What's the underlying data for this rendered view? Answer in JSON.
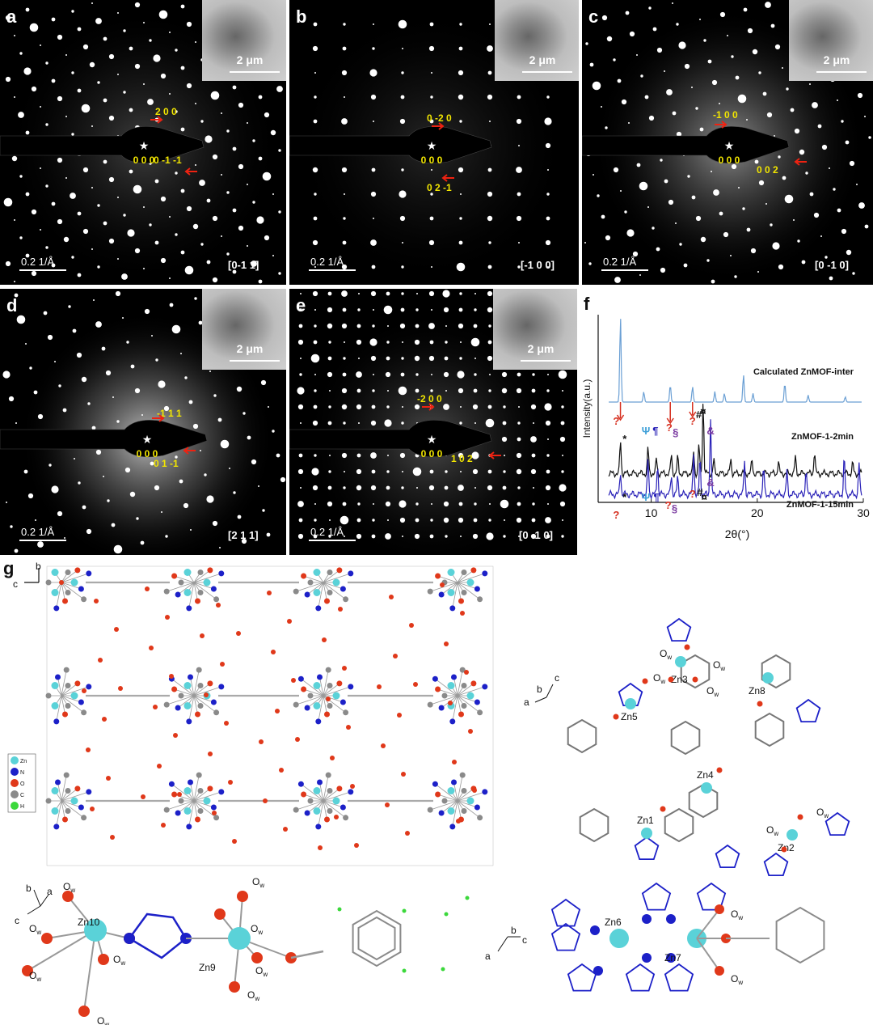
{
  "panels": [
    {
      "label": "a",
      "zone": "[0-1 1]",
      "idx_top": "2 0 0",
      "idx_origin": "0 0 0",
      "idx_bottom": "0 -1 -1",
      "scale": "0.2 1/Å",
      "inset_scale": "2 μm"
    },
    {
      "label": "b",
      "zone": "[-1 0 0]",
      "idx_top": "0 -2 0",
      "idx_origin": "0 0 0",
      "idx_bottom": "0 2 -1",
      "scale": "0.2 1/Å",
      "inset_scale": "2 μm"
    },
    {
      "label": "c",
      "zone": "[0 -1 0]",
      "idx_top": "-1 0 0",
      "idx_origin": "0 0 0",
      "idx_bottom": "0 0 2",
      "scale": "0.2 1/Å",
      "inset_scale": "2 μm"
    },
    {
      "label": "d",
      "zone": "[2 1 1]",
      "idx_top": "-1 1 1",
      "idx_origin": "0 0 0",
      "idx_bottom": "0 1 -1",
      "scale": "0.2 1/Å",
      "inset_scale": "2 μm"
    },
    {
      "label": "e",
      "zone": "[0 -1 0]",
      "idx_top": "-2 0 0",
      "idx_origin": "0 0 0",
      "idx_bottom": "1 0 2",
      "scale": "0.2 1/Å",
      "inset_scale": "2 μm"
    }
  ],
  "panel_f": {
    "label": "f",
    "ylabel": "Intensity(a.u.)",
    "xlabel": "2θ(°)",
    "series": [
      {
        "name": "Calculated ZnMOF-inter",
        "color": "#6a9fd4"
      },
      {
        "name": "ZnMOF-1-2min",
        "color": "#111111"
      },
      {
        "name": "ZnMOF-1-15min",
        "color": "#2a22b8"
      }
    ],
    "markers": {
      "q": "?",
      "star": "*",
      "psi": "Ψ",
      "para": "¶",
      "sect": "§",
      "hash": "#",
      "amp": "&",
      "curr": "¤"
    }
  },
  "chart_data": {
    "type": "line",
    "xlabel": "2θ(°)",
    "ylabel": "Intensity(a.u.)",
    "xlim": [
      5,
      30
    ],
    "xticks": [
      10,
      20,
      30
    ],
    "series": [
      {
        "name": "Calculated ZnMOF-inter",
        "peaks": [
          [
            7.1,
            100
          ],
          [
            9.3,
            12
          ],
          [
            11.8,
            20
          ],
          [
            13.9,
            18
          ],
          [
            16.0,
            12
          ],
          [
            16.9,
            10
          ],
          [
            18.7,
            32
          ],
          [
            19.6,
            10
          ],
          [
            22.6,
            22
          ],
          [
            24.8,
            8
          ],
          [
            28.3,
            6
          ]
        ]
      },
      {
        "name": "ZnMOF-1-2min",
        "peaks": [
          [
            7.1,
            45
          ],
          [
            9.7,
            35
          ],
          [
            10.5,
            20
          ],
          [
            11.9,
            25
          ],
          [
            12.5,
            22
          ],
          [
            14.0,
            30
          ],
          [
            14.5,
            40
          ],
          [
            14.9,
            100
          ],
          [
            15.9,
            18
          ],
          [
            17.5,
            20
          ],
          [
            19.5,
            18
          ],
          [
            22.0,
            16
          ],
          [
            23.6,
            22
          ],
          [
            25.4,
            30
          ],
          [
            29.0,
            14
          ]
        ]
      },
      {
        "name": "ZnMOF-1-15min",
        "peaks": [
          [
            7.1,
            30
          ],
          [
            9.7,
            45
          ],
          [
            10.6,
            40
          ],
          [
            11.9,
            25
          ],
          [
            12.5,
            22
          ],
          [
            14.0,
            55
          ],
          [
            14.6,
            48
          ],
          [
            15.6,
            100
          ],
          [
            18.8,
            45
          ],
          [
            20.6,
            35
          ],
          [
            22.8,
            30
          ],
          [
            24.6,
            34
          ],
          [
            28.2,
            48
          ],
          [
            29.6,
            40
          ]
        ]
      }
    ]
  },
  "panel_g": {
    "label": "g",
    "legend": [
      "Zn",
      "N",
      "O",
      "C",
      "H"
    ],
    "axes": {
      "b": "b",
      "c": "c",
      "a": "a"
    },
    "right_labels": {
      "zn1": "Zn1",
      "zn2": "Zn2",
      "zn3": "Zn3",
      "zn4": "Zn4",
      "zn5": "Zn5",
      "zn8": "Zn8"
    },
    "bottom_labels": {
      "zn10": "Zn10",
      "zn9": "Zn9",
      "zn6": "Zn6",
      "zn7": "Zn7"
    },
    "ow": "O",
    "ow_sub": "w"
  }
}
